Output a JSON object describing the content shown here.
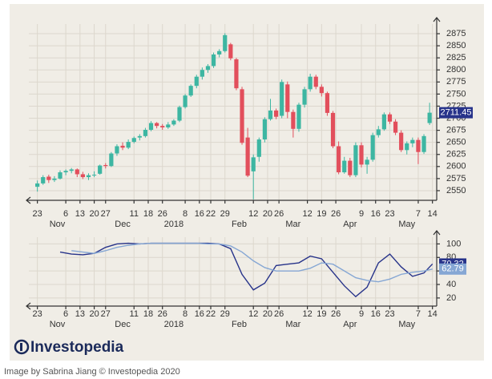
{
  "chart_data": [
    {
      "type": "candlestick",
      "x": [
        0,
        2,
        4,
        6,
        8,
        10,
        12,
        14,
        16,
        18,
        20,
        22,
        24,
        26,
        28,
        30,
        32,
        34,
        36,
        38,
        40,
        42,
        44,
        46,
        48,
        50,
        52,
        54,
        56,
        58,
        60,
        62,
        64,
        66,
        68,
        70,
        72,
        74,
        76,
        78,
        80,
        82,
        84,
        86,
        88,
        90,
        92,
        94,
        96,
        98,
        100,
        102,
        104,
        106,
        108,
        110,
        112,
        114,
        116,
        118,
        120,
        122,
        124,
        126,
        128,
        130,
        132,
        134,
        136,
        138
      ],
      "open": [
        2558,
        2565,
        2579,
        2572,
        2575,
        2588,
        2591,
        2594,
        2584,
        2578,
        2582,
        2585,
        2603,
        2601,
        2627,
        2643,
        2639,
        2651,
        2660,
        2663,
        2676,
        2690,
        2684,
        2681,
        2687,
        2695,
        2723,
        2747,
        2767,
        2786,
        2800,
        2808,
        2832,
        2839,
        2853,
        2822,
        2760,
        2660,
        2590,
        2620,
        2656,
        2698,
        2716,
        2705,
        2770,
        2713,
        2678,
        2728,
        2760,
        2786,
        2765,
        2752,
        2711,
        2642,
        2588,
        2612,
        2582,
        2644,
        2604,
        2614,
        2665,
        2677,
        2708,
        2693,
        2670,
        2634,
        2648,
        2655,
        2630,
        2690
      ],
      "high": [
        2571,
        2582,
        2583,
        2580,
        2592,
        2594,
        2597,
        2596,
        2589,
        2586,
        2590,
        2604,
        2607,
        2630,
        2646,
        2650,
        2656,
        2662,
        2667,
        2680,
        2694,
        2692,
        2688,
        2692,
        2698,
        2726,
        2750,
        2770,
        2790,
        2805,
        2812,
        2836,
        2843,
        2876,
        2856,
        2825,
        2765,
        2680,
        2625,
        2660,
        2702,
        2740,
        2720,
        2780,
        2776,
        2718,
        2732,
        2765,
        2792,
        2790,
        2770,
        2755,
        2715,
        2652,
        2620,
        2618,
        2650,
        2650,
        2620,
        2670,
        2684,
        2712,
        2712,
        2698,
        2675,
        2652,
        2660,
        2660,
        2667,
        2732
      ],
      "low": [
        2548,
        2562,
        2566,
        2568,
        2573,
        2582,
        2586,
        2578,
        2574,
        2572,
        2578,
        2583,
        2596,
        2599,
        2622,
        2634,
        2636,
        2648,
        2654,
        2660,
        2673,
        2679,
        2676,
        2678,
        2684,
        2692,
        2720,
        2744,
        2762,
        2780,
        2794,
        2804,
        2826,
        2836,
        2820,
        2758,
        2645,
        2578,
        2532,
        2610,
        2650,
        2695,
        2698,
        2700,
        2700,
        2660,
        2672,
        2722,
        2755,
        2760,
        2745,
        2705,
        2638,
        2584,
        2585,
        2578,
        2578,
        2598,
        2585,
        2610,
        2660,
        2674,
        2688,
        2665,
        2630,
        2625,
        2640,
        2605,
        2626,
        2686
      ],
      "close": [
        2565,
        2578,
        2572,
        2575,
        2588,
        2591,
        2594,
        2584,
        2578,
        2582,
        2583,
        2602,
        2601,
        2627,
        2642,
        2639,
        2651,
        2659,
        2663,
        2676,
        2690,
        2684,
        2681,
        2687,
        2695,
        2723,
        2747,
        2767,
        2786,
        2800,
        2808,
        2832,
        2839,
        2872,
        2824,
        2762,
        2649,
        2581,
        2619,
        2656,
        2698,
        2716,
        2703,
        2775,
        2713,
        2678,
        2728,
        2760,
        2786,
        2765,
        2752,
        2711,
        2642,
        2588,
        2612,
        2582,
        2644,
        2604,
        2614,
        2665,
        2677,
        2708,
        2693,
        2670,
        2634,
        2648,
        2655,
        2630,
        2663,
        2711.45
      ],
      "up_color": "#3db6a2",
      "down_color": "#e24f5c",
      "label_color": "#27338a",
      "xlim": [
        -3,
        140.5
      ],
      "ylim": [
        2530,
        2895
      ],
      "yticks": [
        2550,
        2575,
        2600,
        2625,
        2650,
        2675,
        2700,
        2725,
        2750,
        2775,
        2800,
        2825,
        2850,
        2875
      ],
      "xticks": [
        {
          "value": 0,
          "label": "23"
        },
        {
          "value": 10,
          "label": "6"
        },
        {
          "value": 15,
          "label": "13"
        },
        {
          "value": 20,
          "label": "20"
        },
        {
          "value": 24,
          "label": "27"
        },
        {
          "value": 34,
          "label": "11"
        },
        {
          "value": 39,
          "label": "18"
        },
        {
          "value": 44,
          "label": "26"
        },
        {
          "value": 52,
          "label": "8"
        },
        {
          "value": 57,
          "label": "16"
        },
        {
          "value": 61,
          "label": "22"
        },
        {
          "value": 66,
          "label": "29"
        },
        {
          "value": 76,
          "label": "12"
        },
        {
          "value": 81,
          "label": "20"
        },
        {
          "value": 85,
          "label": "26"
        },
        {
          "value": 95,
          "label": "12"
        },
        {
          "value": 100,
          "label": "19"
        },
        {
          "value": 105,
          "label": "26"
        },
        {
          "value": 114,
          "label": "9"
        },
        {
          "value": 119,
          "label": "16"
        },
        {
          "value": 124,
          "label": "23"
        },
        {
          "value": 134,
          "label": "7"
        },
        {
          "value": 139,
          "label": "14"
        }
      ],
      "month_labels": [
        {
          "value": 7,
          "label": "Nov"
        },
        {
          "value": 30,
          "label": "Dec"
        },
        {
          "value": 48,
          "label": "2018"
        },
        {
          "value": 71,
          "label": "Feb"
        },
        {
          "value": 90,
          "label": "Mar"
        },
        {
          "value": 110,
          "label": "Apr"
        },
        {
          "value": 130,
          "label": "May"
        }
      ],
      "grid": true
    },
    {
      "type": "line",
      "x": [
        8,
        12,
        16,
        20,
        24,
        28,
        32,
        36,
        40,
        44,
        48,
        52,
        56,
        60,
        64,
        68,
        72,
        76,
        80,
        84,
        88,
        92,
        96,
        100,
        104,
        108,
        112,
        116,
        120,
        124,
        128,
        132,
        136,
        139
      ],
      "series": [
        {
          "color": "#27338a",
          "values": [
            88,
            85,
            84,
            86,
            95,
            100,
            101,
            100,
            101,
            101,
            101,
            101,
            101,
            101,
            100,
            93,
            55,
            32,
            42,
            68,
            70,
            72,
            82,
            78,
            58,
            38,
            22,
            36,
            72,
            85,
            66,
            52,
            57,
            70.32
          ]
        },
        {
          "color": "#86a7d4",
          "values": [
            null,
            90,
            88,
            86,
            90,
            95,
            98,
            100,
            101,
            101,
            101,
            101,
            101,
            100,
            100,
            97,
            88,
            75,
            65,
            60,
            60,
            60,
            64,
            72,
            70,
            60,
            50,
            46,
            44,
            48,
            55,
            58,
            60,
            62.79
          ]
        }
      ],
      "xlim": [
        -3,
        140.5
      ],
      "ylim": [
        8,
        110
      ],
      "yticks": [
        20,
        40,
        60,
        80,
        100
      ],
      "xticks": [
        {
          "value": 0,
          "label": "23"
        },
        {
          "value": 10,
          "label": "6"
        },
        {
          "value": 15,
          "label": "13"
        },
        {
          "value": 20,
          "label": "20"
        },
        {
          "value": 24,
          "label": "27"
        },
        {
          "value": 34,
          "label": "11"
        },
        {
          "value": 39,
          "label": "18"
        },
        {
          "value": 44,
          "label": "26"
        },
        {
          "value": 52,
          "label": "8"
        },
        {
          "value": 57,
          "label": "16"
        },
        {
          "value": 61,
          "label": "22"
        },
        {
          "value": 66,
          "label": "29"
        },
        {
          "value": 76,
          "label": "12"
        },
        {
          "value": 81,
          "label": "20"
        },
        {
          "value": 85,
          "label": "26"
        },
        {
          "value": 95,
          "label": "12"
        },
        {
          "value": 100,
          "label": "19"
        },
        {
          "value": 105,
          "label": "26"
        },
        {
          "value": 114,
          "label": "9"
        },
        {
          "value": 119,
          "label": "16"
        },
        {
          "value": 124,
          "label": "23"
        },
        {
          "value": 134,
          "label": "7"
        },
        {
          "value": 139,
          "label": "14"
        }
      ],
      "month_labels": [
        {
          "value": 7,
          "label": "Nov"
        },
        {
          "value": 30,
          "label": "Dec"
        },
        {
          "value": 48,
          "label": "2018"
        },
        {
          "value": 71,
          "label": "Feb"
        },
        {
          "value": 90,
          "label": "Mar"
        },
        {
          "value": 110,
          "label": "Apr"
        },
        {
          "value": 130,
          "label": "May"
        }
      ],
      "grid": true
    }
  ],
  "brand": "Investopedia",
  "caption": "Image by Sabrina Jiang © Investopedia 2020"
}
